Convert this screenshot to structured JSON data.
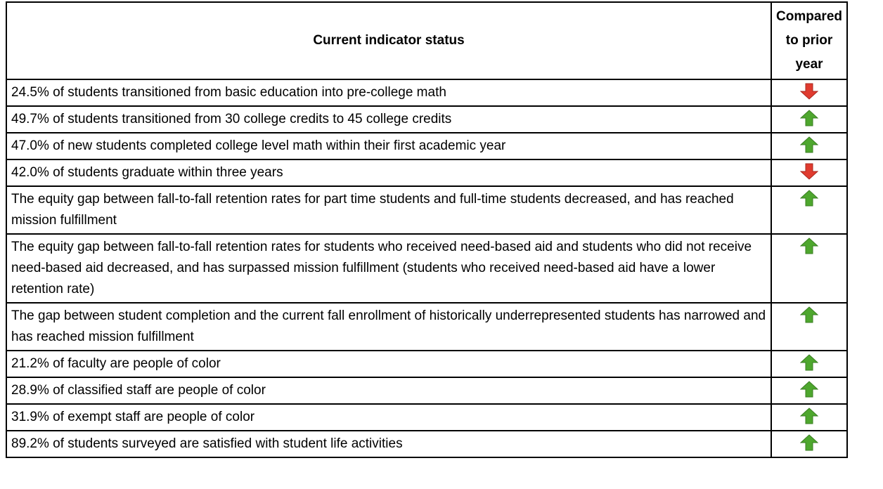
{
  "table": {
    "header": [
      "Current indicator status",
      "Compared to prior year"
    ],
    "rows": [
      {
        "text": "24.5% of students transitioned from basic education into pre-college math",
        "arrow": "down"
      },
      {
        "text": "49.7% of students transitioned from 30 college credits to 45 college credits",
        "arrow": "up"
      },
      {
        "text": "47.0% of new students completed college level math within their first academic year",
        "arrow": "up"
      },
      {
        "text": "42.0% of students graduate within three years",
        "arrow": "down"
      },
      {
        "text": "The equity gap between fall-to-fall retention rates for part time students and full-time students decreased, and has reached mission fulfillment",
        "arrow": "up"
      },
      {
        "text": "The equity gap between fall-to-fall retention rates for students who received need-based aid and students who did not receive need-based aid decreased, and has surpassed mission fulfillment (students who received need-based aid have a lower retention rate)",
        "arrow": "up"
      },
      {
        "text": "The gap between student completion and the current fall enrollment of historically underrepresented students has narrowed and has reached mission fulfillment",
        "arrow": "up"
      },
      {
        "text": "21.2% of faculty are people of color",
        "arrow": "up"
      },
      {
        "text": "28.9% of classified staff are people of color",
        "arrow": "up"
      },
      {
        "text": "31.9% of exempt staff are people of color",
        "arrow": "up"
      },
      {
        "text": "89.2% of students surveyed are satisfied with student life activities",
        "arrow": "up"
      }
    ]
  }
}
